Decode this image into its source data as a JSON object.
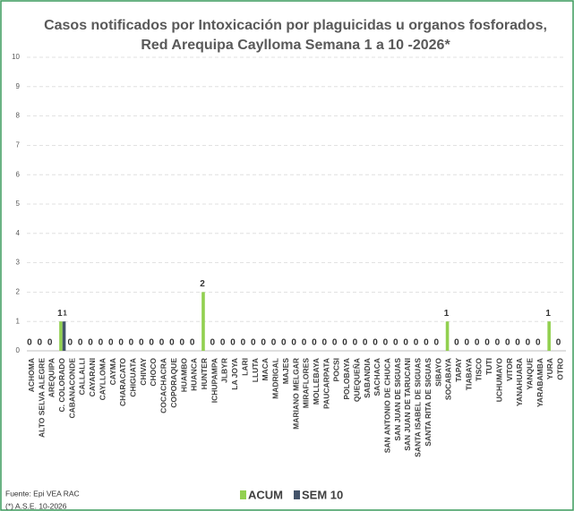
{
  "chart_data": {
    "type": "bar",
    "title": [
      "Casos notificados por Intoxicación por plaguicidas u organos fosforados,",
      "Red Arequipa Caylloma Semana 1 a 10 -2026*"
    ],
    "categories": [
      "ACHOMA",
      "ALTO SELVA ALEGRE",
      "AREQUIPA",
      "C. COLORADO",
      "CABANACONDE",
      "CALLALLI",
      "CAYARANI",
      "CAYLLOMA",
      "CAYMA",
      "CHARACATO",
      "CHIGUATA",
      "CHIVAY",
      "CHOCO",
      "COCACHACRA",
      "COPORAQUE",
      "HUAMBO",
      "HUANCA",
      "HUNTER",
      "ICHUPAMPA",
      "JLBYR",
      "LA JOYA",
      "LARI",
      "LLUTA",
      "MACA",
      "MADRIGAL",
      "MAJES",
      "MARIANO MELGAR",
      "MIRAFLORES",
      "MOLLEBAYA",
      "PAUCARPATA",
      "POCSI",
      "POLOBAYA",
      "QUEQUEÑA",
      "SABANDIA",
      "SACHACA",
      "SAN ANTONIO DE CHUCA",
      "SAN JUAN DE SIGUAS",
      "SAN JUAN DE TARUCANI",
      "SANTA ISABEL DE SIGUAS",
      "SANTA RITA DE SIGUAS",
      "SIBAYO",
      "SOCABAYA",
      "TAPAY",
      "TIABAYA",
      "TISCO",
      "TUTI",
      "UCHUMAYO",
      "VITOR",
      "YANAHUARA",
      "YANQUE",
      "YARABAMBA",
      "YURA",
      "OTRO"
    ],
    "series": [
      {
        "name": "ACUM",
        "color": "#92d050",
        "values": [
          0,
          0,
          0,
          1,
          0,
          0,
          0,
          0,
          0,
          0,
          0,
          0,
          0,
          0,
          0,
          0,
          0,
          2,
          0,
          0,
          0,
          0,
          0,
          0,
          0,
          0,
          0,
          0,
          0,
          0,
          0,
          0,
          0,
          0,
          0,
          0,
          0,
          0,
          0,
          0,
          0,
          1,
          0,
          0,
          0,
          0,
          0,
          0,
          0,
          0,
          0,
          1,
          0
        ]
      },
      {
        "name": "SEM 10",
        "color": "#44546a",
        "values": [
          0,
          0,
          0,
          1,
          0,
          0,
          0,
          0,
          0,
          0,
          0,
          0,
          0,
          0,
          0,
          0,
          0,
          0,
          0,
          0,
          0,
          0,
          0,
          0,
          0,
          0,
          0,
          0,
          0,
          0,
          0,
          0,
          0,
          0,
          0,
          0,
          0,
          0,
          0,
          0,
          0,
          0,
          0,
          0,
          0,
          0,
          0,
          0,
          0,
          0,
          0,
          0,
          0
        ]
      }
    ],
    "ylim": [
      0,
      10
    ],
    "yticks": [
      0,
      1,
      2,
      3,
      4,
      5,
      6,
      7,
      8,
      9,
      10
    ],
    "grid": true,
    "source": "Fuente: Epi VEA RAC",
    "note": "(*) A.S.E. 10-2026"
  }
}
